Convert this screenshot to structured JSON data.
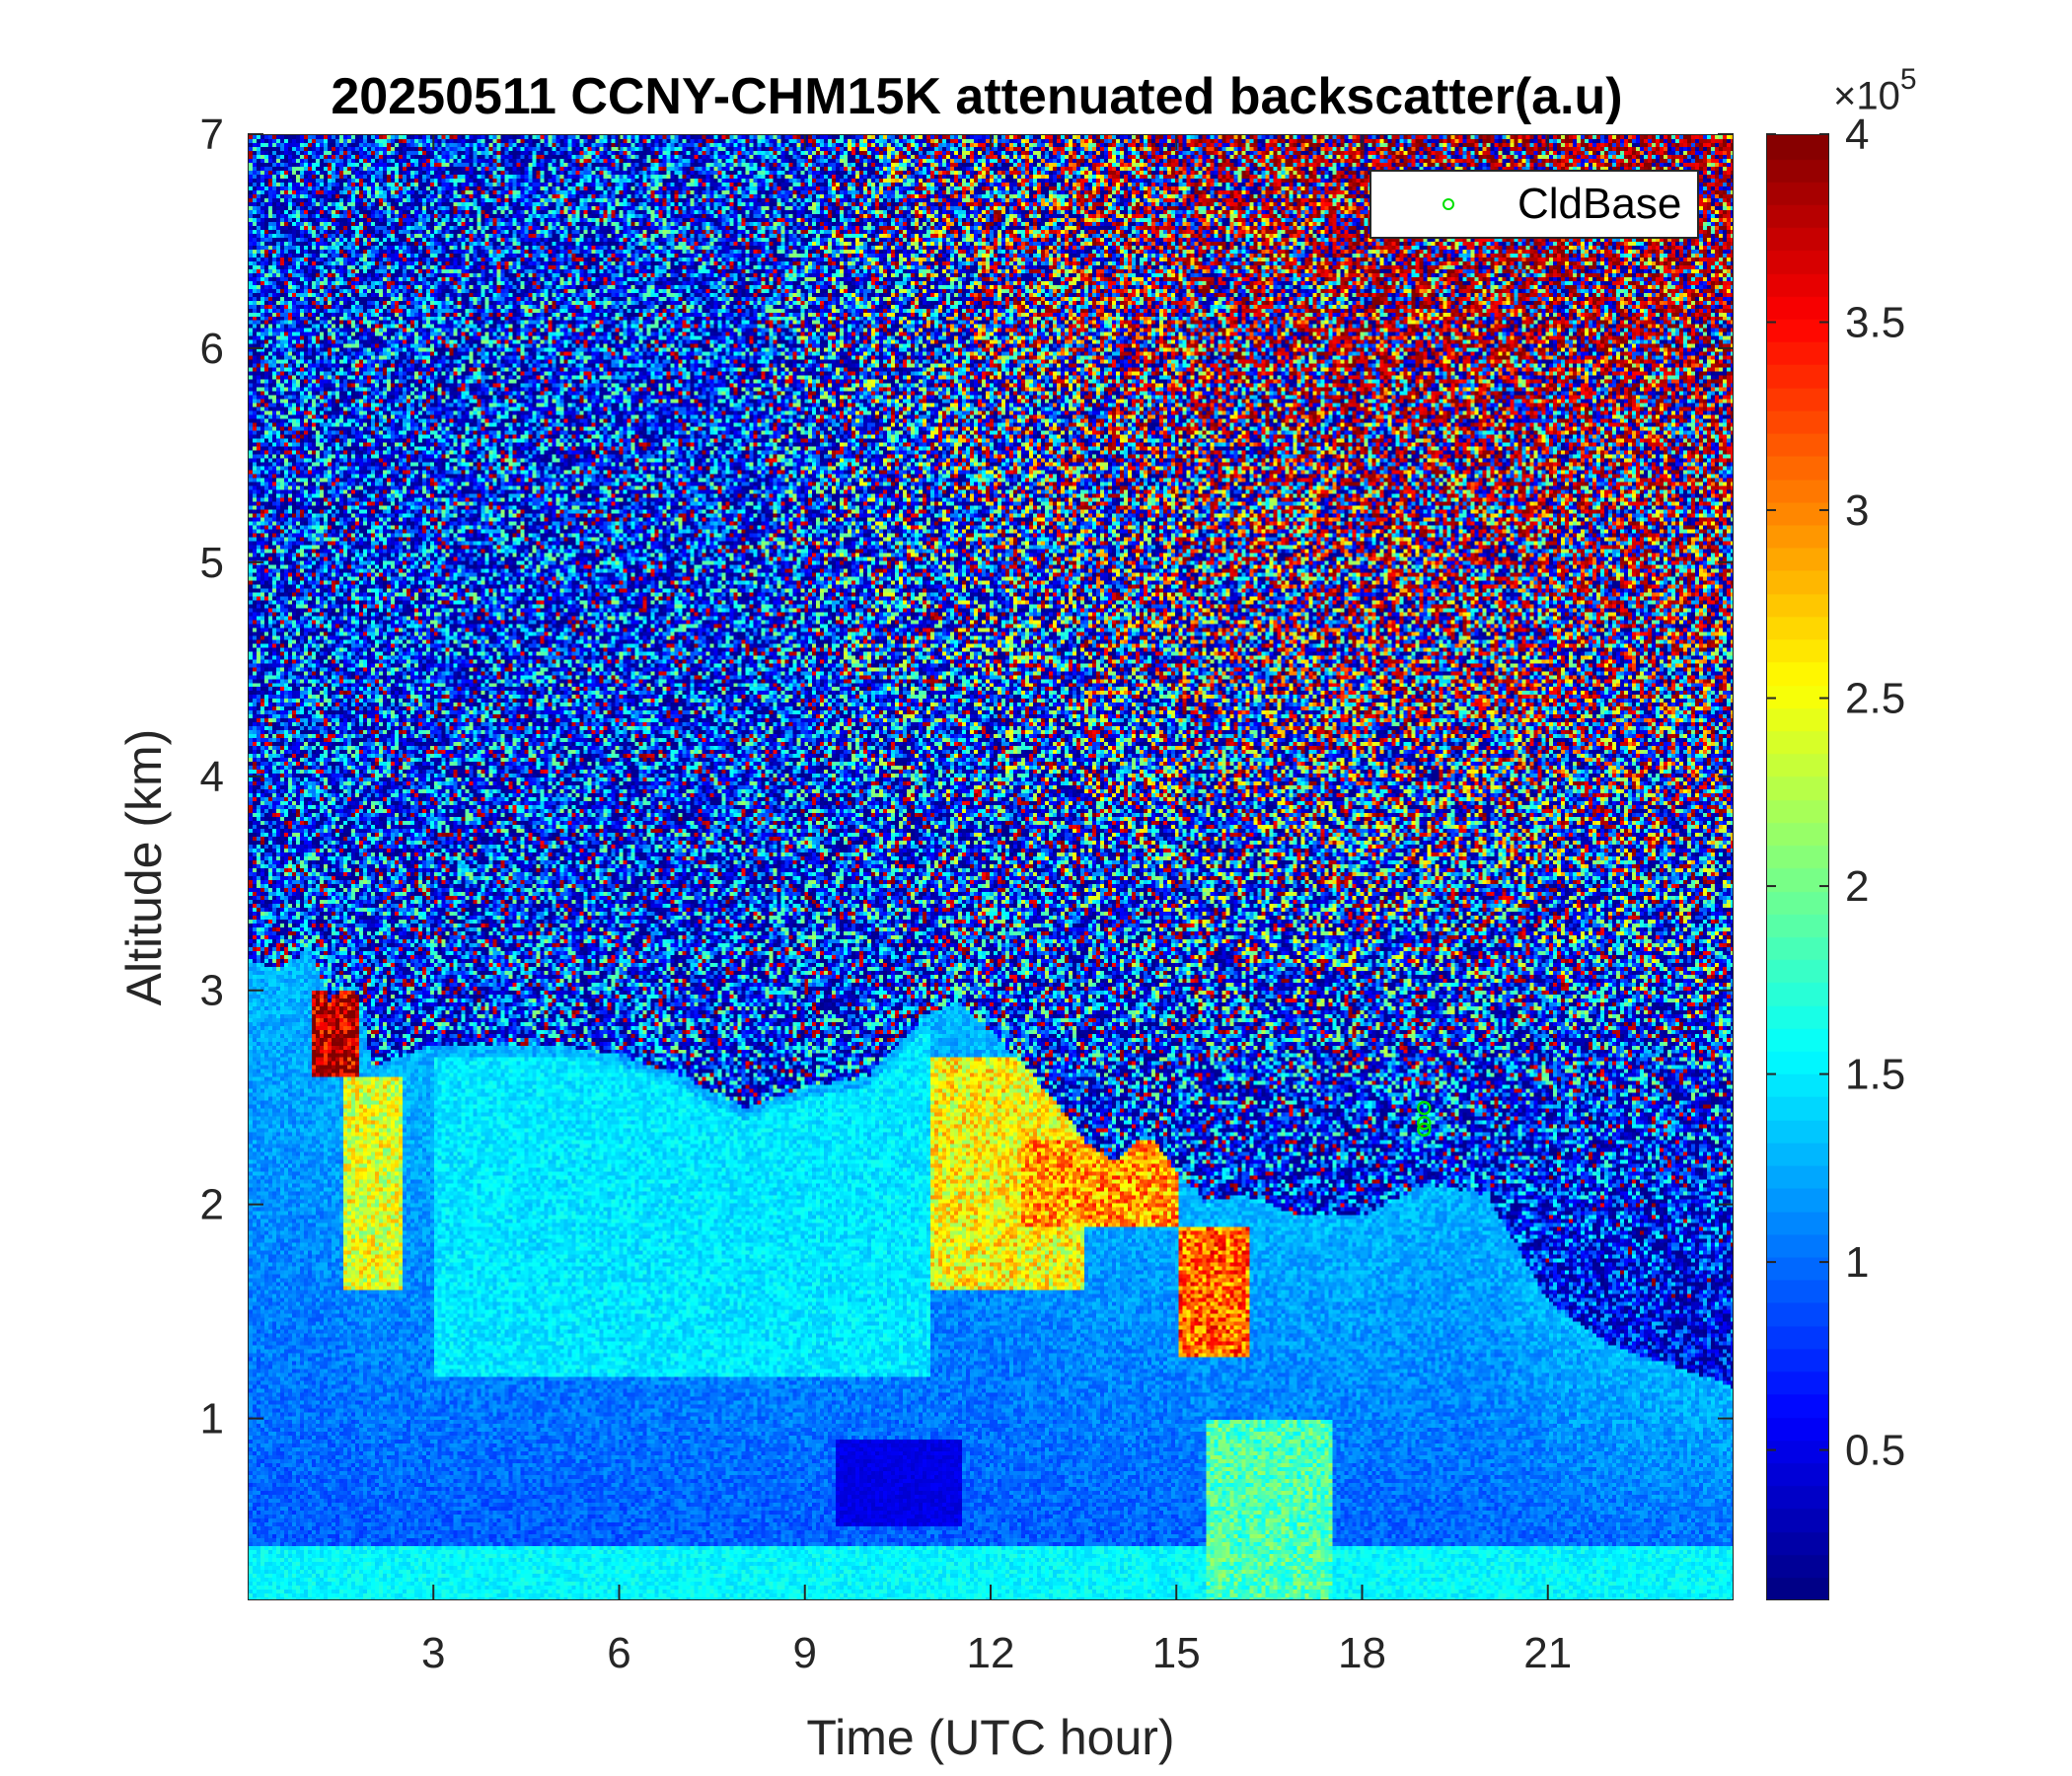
{
  "chart_data": {
    "type": "heatmap",
    "title": "20250511 CCNY-CHM15K attenuated backscatter(a.u)",
    "xlabel": "Time (UTC hour)",
    "ylabel": "Altitude (km)",
    "xlim": [
      0,
      24
    ],
    "ylim": [
      0.15,
      7
    ],
    "xticks": [
      3,
      6,
      9,
      12,
      15,
      18,
      21
    ],
    "yticks": [
      1,
      2,
      3,
      4,
      5,
      6,
      7
    ],
    "colormap": "jet",
    "clim": [
      0.1,
      4
    ],
    "colorbar_ticks": [
      0.5,
      1,
      1.5,
      2,
      2.5,
      3,
      3.5,
      4
    ],
    "colorbar_multiplier": "×10",
    "colorbar_exponent": "5",
    "legend": {
      "entries": [
        "CldBase"
      ],
      "position": "top-right",
      "marker": "circle",
      "color": "#00e000"
    },
    "cloud_base_points": [
      {
        "x": 19.0,
        "y": 2.45
      },
      {
        "x": 19.0,
        "y": 2.38
      },
      {
        "x": 19.0,
        "y": 2.35
      }
    ],
    "boundary_layer_top_km": {
      "x": [
        0,
        0.5,
        1.0,
        1.3,
        1.7,
        2.0,
        2.5,
        3.0,
        4.0,
        5.0,
        6.0,
        7.0,
        8.0,
        9.0,
        10.0,
        11.0,
        11.5,
        12.0,
        12.5,
        13.0,
        13.5,
        14.0,
        14.5,
        15.0,
        15.5,
        16.0,
        17.0,
        18.0,
        19.0,
        20.0,
        21.0,
        22.0,
        23.0,
        24.0
      ],
      "y": [
        3.1,
        3.05,
        3.15,
        2.9,
        3.0,
        2.6,
        2.65,
        2.7,
        2.7,
        2.7,
        2.65,
        2.55,
        2.4,
        2.5,
        2.55,
        2.85,
        2.9,
        2.75,
        2.6,
        2.45,
        2.25,
        2.15,
        2.3,
        2.1,
        1.95,
        2.0,
        1.9,
        1.9,
        2.05,
        2.0,
        1.5,
        1.3,
        1.2,
        1.1
      ]
    },
    "aerosol_layer_intensity_note": "Backscatter values in units of 1e5 a.u.",
    "features": [
      {
        "x": [
          1.0,
          1.8
        ],
        "y": [
          2.6,
          3.0
        ],
        "value": 3.9
      },
      {
        "x": [
          1.5,
          2.5
        ],
        "y": [
          1.6,
          2.6
        ],
        "value": 2.5
      },
      {
        "x": [
          11.0,
          13.5
        ],
        "y": [
          1.6,
          2.7
        ],
        "value": 2.6
      },
      {
        "x": [
          12.5,
          15.0
        ],
        "y": [
          1.9,
          2.3
        ],
        "value": 3.0
      },
      {
        "x": [
          15.0,
          16.2
        ],
        "y": [
          1.3,
          1.9
        ],
        "value": 3.2
      },
      {
        "x": [
          15.5,
          17.5
        ],
        "y": [
          0.15,
          1.0
        ],
        "value": 1.9
      },
      {
        "x": [
          9.5,
          11.5
        ],
        "y": [
          0.5,
          0.9
        ],
        "value": 0.5
      }
    ]
  }
}
